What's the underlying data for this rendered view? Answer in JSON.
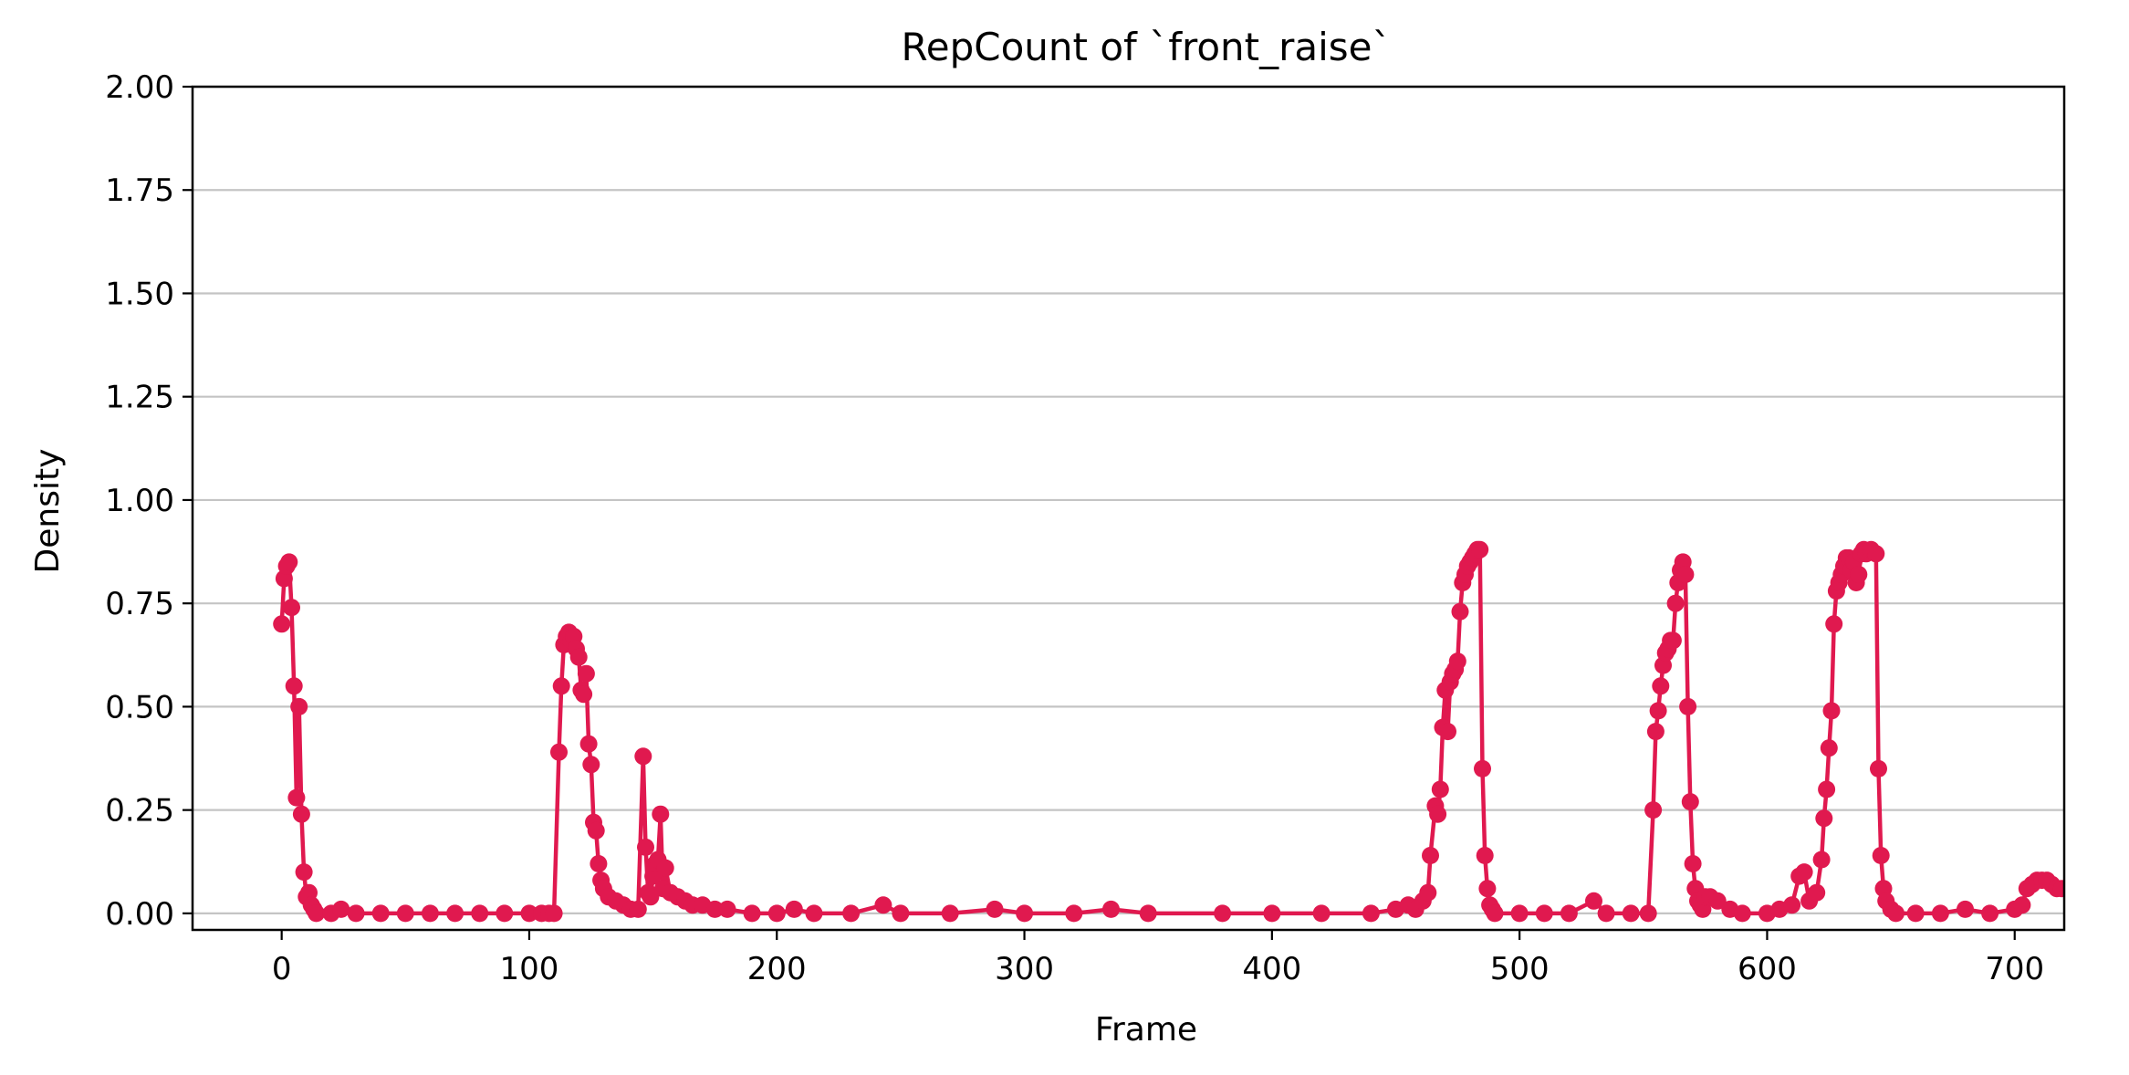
{
  "chart_data": {
    "type": "line",
    "title": "RepCount of `front_raise`",
    "xlabel": "Frame",
    "ylabel": "Density",
    "xlim": [
      -36,
      720
    ],
    "ylim": [
      -0.04,
      2.0
    ],
    "xticks": [
      0,
      100,
      200,
      300,
      400,
      500,
      600,
      700
    ],
    "xtick_labels": [
      "0",
      "100",
      "200",
      "300",
      "400",
      "500",
      "600",
      "700"
    ],
    "yticks": [
      0,
      0.25,
      0.5,
      0.75,
      1.0,
      1.25,
      1.5,
      1.75,
      2.0
    ],
    "ytick_labels": [
      "0.00",
      "0.25",
      "0.50",
      "0.75",
      "1.00",
      "1.25",
      "1.50",
      "1.75",
      "2.00"
    ],
    "grid": "y-major",
    "marker": "circle",
    "color": "#e0194f",
    "series": [
      {
        "points": [
          [
            0,
            0.7
          ],
          [
            1,
            0.81
          ],
          [
            2,
            0.84
          ],
          [
            3,
            0.85
          ],
          [
            4,
            0.74
          ],
          [
            5,
            0.55
          ],
          [
            6,
            0.28
          ],
          [
            7,
            0.5
          ],
          [
            8,
            0.24
          ],
          [
            9,
            0.1
          ],
          [
            10,
            0.04
          ],
          [
            11,
            0.05
          ],
          [
            12,
            0.02
          ],
          [
            13,
            0.01
          ],
          [
            14,
            0.0
          ],
          [
            20,
            0.0
          ],
          [
            24,
            0.01
          ],
          [
            30,
            0.0
          ],
          [
            40,
            0.0
          ],
          [
            50,
            0.0
          ],
          [
            60,
            0.0
          ],
          [
            70,
            0.0
          ],
          [
            80,
            0.0
          ],
          [
            90,
            0.0
          ],
          [
            100,
            0.0
          ],
          [
            105,
            0.0
          ],
          [
            108,
            0.0
          ],
          [
            110,
            0.0
          ],
          [
            112,
            0.39
          ],
          [
            113,
            0.55
          ],
          [
            114,
            0.65
          ],
          [
            115,
            0.67
          ],
          [
            116,
            0.68
          ],
          [
            117,
            0.66
          ],
          [
            118,
            0.67
          ],
          [
            119,
            0.64
          ],
          [
            120,
            0.62
          ],
          [
            121,
            0.54
          ],
          [
            122,
            0.53
          ],
          [
            123,
            0.58
          ],
          [
            124,
            0.41
          ],
          [
            125,
            0.36
          ],
          [
            126,
            0.22
          ],
          [
            127,
            0.2
          ],
          [
            128,
            0.12
          ],
          [
            129,
            0.08
          ],
          [
            130,
            0.06
          ],
          [
            132,
            0.04
          ],
          [
            135,
            0.03
          ],
          [
            138,
            0.02
          ],
          [
            141,
            0.01
          ],
          [
            144,
            0.01
          ],
          [
            146,
            0.38
          ],
          [
            147,
            0.16
          ],
          [
            148,
            0.05
          ],
          [
            149,
            0.04
          ],
          [
            150,
            0.09
          ],
          [
            151,
            0.12
          ],
          [
            152,
            0.13
          ],
          [
            153,
            0.24
          ],
          [
            154,
            0.06
          ],
          [
            155,
            0.11
          ],
          [
            157,
            0.05
          ],
          [
            160,
            0.04
          ],
          [
            163,
            0.03
          ],
          [
            166,
            0.02
          ],
          [
            170,
            0.02
          ],
          [
            175,
            0.01
          ],
          [
            180,
            0.01
          ],
          [
            190,
            0.0
          ],
          [
            200,
            0.0
          ],
          [
            207,
            0.01
          ],
          [
            215,
            0.0
          ],
          [
            230,
            0.0
          ],
          [
            243,
            0.02
          ],
          [
            250,
            0.0
          ],
          [
            270,
            0.0
          ],
          [
            288,
            0.01
          ],
          [
            300,
            0.0
          ],
          [
            320,
            0.0
          ],
          [
            335,
            0.01
          ],
          [
            350,
            0.0
          ],
          [
            380,
            0.0
          ],
          [
            400,
            0.0
          ],
          [
            420,
            0.0
          ],
          [
            440,
            0.0
          ],
          [
            450,
            0.01
          ],
          [
            455,
            0.02
          ],
          [
            458,
            0.01
          ],
          [
            461,
            0.03
          ],
          [
            463,
            0.05
          ],
          [
            464,
            0.14
          ],
          [
            466,
            0.26
          ],
          [
            467,
            0.24
          ],
          [
            468,
            0.3
          ],
          [
            469,
            0.45
          ],
          [
            470,
            0.54
          ],
          [
            471,
            0.44
          ],
          [
            472,
            0.56
          ],
          [
            473,
            0.58
          ],
          [
            474,
            0.59
          ],
          [
            475,
            0.61
          ],
          [
            476,
            0.73
          ],
          [
            477,
            0.8
          ],
          [
            478,
            0.82
          ],
          [
            479,
            0.84
          ],
          [
            480,
            0.85
          ],
          [
            481,
            0.86
          ],
          [
            482,
            0.87
          ],
          [
            483,
            0.88
          ],
          [
            484,
            0.88
          ],
          [
            485,
            0.35
          ],
          [
            486,
            0.14
          ],
          [
            487,
            0.06
          ],
          [
            488,
            0.02
          ],
          [
            489,
            0.01
          ],
          [
            490,
            0.0
          ],
          [
            500,
            0.0
          ],
          [
            510,
            0.0
          ],
          [
            520,
            0.0
          ],
          [
            530,
            0.03
          ],
          [
            535,
            0.0
          ],
          [
            545,
            0.0
          ],
          [
            552,
            0.0
          ],
          [
            554,
            0.25
          ],
          [
            555,
            0.44
          ],
          [
            556,
            0.49
          ],
          [
            557,
            0.55
          ],
          [
            558,
            0.6
          ],
          [
            559,
            0.63
          ],
          [
            560,
            0.64
          ],
          [
            561,
            0.66
          ],
          [
            562,
            0.66
          ],
          [
            563,
            0.75
          ],
          [
            564,
            0.8
          ],
          [
            565,
            0.83
          ],
          [
            566,
            0.85
          ],
          [
            567,
            0.82
          ],
          [
            568,
            0.5
          ],
          [
            569,
            0.27
          ],
          [
            570,
            0.12
          ],
          [
            571,
            0.06
          ],
          [
            572,
            0.03
          ],
          [
            573,
            0.02
          ],
          [
            574,
            0.01
          ],
          [
            575,
            0.04
          ],
          [
            577,
            0.04
          ],
          [
            580,
            0.03
          ],
          [
            585,
            0.01
          ],
          [
            590,
            0.0
          ],
          [
            600,
            0.0
          ],
          [
            605,
            0.01
          ],
          [
            610,
            0.02
          ],
          [
            613,
            0.09
          ],
          [
            615,
            0.1
          ],
          [
            617,
            0.03
          ],
          [
            620,
            0.05
          ],
          [
            622,
            0.13
          ],
          [
            623,
            0.23
          ],
          [
            624,
            0.3
          ],
          [
            625,
            0.4
          ],
          [
            626,
            0.49
          ],
          [
            627,
            0.7
          ],
          [
            628,
            0.78
          ],
          [
            629,
            0.8
          ],
          [
            630,
            0.82
          ],
          [
            631,
            0.84
          ],
          [
            632,
            0.86
          ],
          [
            633,
            0.86
          ],
          [
            634,
            0.83
          ],
          [
            635,
            0.85
          ],
          [
            636,
            0.8
          ],
          [
            637,
            0.82
          ],
          [
            638,
            0.87
          ],
          [
            639,
            0.88
          ],
          [
            640,
            0.87
          ],
          [
            642,
            0.88
          ],
          [
            644,
            0.87
          ],
          [
            645,
            0.35
          ],
          [
            646,
            0.14
          ],
          [
            647,
            0.06
          ],
          [
            648,
            0.03
          ],
          [
            650,
            0.01
          ],
          [
            652,
            0.0
          ],
          [
            660,
            0.0
          ],
          [
            670,
            0.0
          ],
          [
            680,
            0.01
          ],
          [
            690,
            0.0
          ],
          [
            700,
            0.01
          ],
          [
            703,
            0.02
          ],
          [
            705,
            0.06
          ],
          [
            707,
            0.07
          ],
          [
            709,
            0.08
          ],
          [
            711,
            0.08
          ],
          [
            713,
            0.08
          ],
          [
            715,
            0.07
          ],
          [
            717,
            0.06
          ],
          [
            719,
            0.06
          ]
        ]
      }
    ]
  }
}
